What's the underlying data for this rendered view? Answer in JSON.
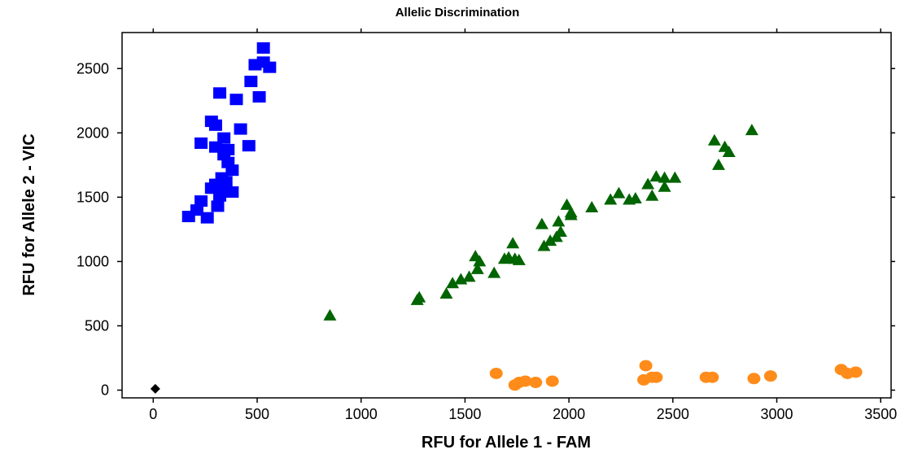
{
  "chart_data": {
    "type": "scatter",
    "title": "Allelic Discrimination",
    "xlabel": "RFU for Allele 1 - FAM",
    "ylabel": "RFU for Allele 2 - VIC",
    "xlim": [
      -150,
      3550
    ],
    "ylim": [
      -60,
      2780
    ],
    "xticks": [
      0,
      500,
      1000,
      1500,
      2000,
      2500,
      3000,
      3500
    ],
    "yticks": [
      0,
      500,
      1000,
      1500,
      2000,
      2500
    ],
    "grid": false,
    "series": [
      {
        "marker": "square",
        "color": "#0000ff",
        "points": [
          [
            530,
            2660
          ],
          [
            490,
            2530
          ],
          [
            530,
            2550
          ],
          [
            560,
            2510
          ],
          [
            470,
            2400
          ],
          [
            510,
            2280
          ],
          [
            320,
            2310
          ],
          [
            400,
            2260
          ],
          [
            280,
            2090
          ],
          [
            300,
            2060
          ],
          [
            420,
            2030
          ],
          [
            340,
            1960
          ],
          [
            230,
            1920
          ],
          [
            460,
            1900
          ],
          [
            300,
            1890
          ],
          [
            360,
            1870
          ],
          [
            340,
            1830
          ],
          [
            360,
            1770
          ],
          [
            380,
            1710
          ],
          [
            330,
            1650
          ],
          [
            300,
            1600
          ],
          [
            350,
            1620
          ],
          [
            280,
            1570
          ],
          [
            340,
            1560
          ],
          [
            380,
            1540
          ],
          [
            320,
            1510
          ],
          [
            230,
            1470
          ],
          [
            310,
            1430
          ],
          [
            210,
            1400
          ],
          [
            170,
            1350
          ],
          [
            260,
            1340
          ]
        ]
      },
      {
        "marker": "triangle",
        "color": "#006400",
        "points": [
          [
            2880,
            2020
          ],
          [
            2700,
            1940
          ],
          [
            2750,
            1890
          ],
          [
            2770,
            1850
          ],
          [
            2720,
            1750
          ],
          [
            2420,
            1660
          ],
          [
            2460,
            1650
          ],
          [
            2510,
            1650
          ],
          [
            2460,
            1580
          ],
          [
            2380,
            1600
          ],
          [
            2240,
            1530
          ],
          [
            2200,
            1480
          ],
          [
            2320,
            1490
          ],
          [
            2290,
            1480
          ],
          [
            2400,
            1510
          ],
          [
            1990,
            1440
          ],
          [
            2010,
            1380
          ],
          [
            2010,
            1360
          ],
          [
            2110,
            1420
          ],
          [
            1950,
            1310
          ],
          [
            1870,
            1290
          ],
          [
            1960,
            1230
          ],
          [
            1940,
            1190
          ],
          [
            1910,
            1160
          ],
          [
            1880,
            1120
          ],
          [
            1730,
            1140
          ],
          [
            1550,
            1040
          ],
          [
            1570,
            1000
          ],
          [
            1710,
            1030
          ],
          [
            1740,
            1020
          ],
          [
            1760,
            1010
          ],
          [
            1690,
            1020
          ],
          [
            1560,
            940
          ],
          [
            1640,
            910
          ],
          [
            1520,
            880
          ],
          [
            1480,
            860
          ],
          [
            1440,
            830
          ],
          [
            1410,
            750
          ],
          [
            1280,
            720
          ],
          [
            1270,
            700
          ],
          [
            850,
            580
          ]
        ]
      },
      {
        "marker": "circle",
        "color": "#ff8c1a",
        "points": [
          [
            1650,
            130
          ],
          [
            1790,
            70
          ],
          [
            1760,
            60
          ],
          [
            1740,
            40
          ],
          [
            1840,
            60
          ],
          [
            1920,
            70
          ],
          [
            2370,
            190
          ],
          [
            2360,
            80
          ],
          [
            2400,
            100
          ],
          [
            2420,
            100
          ],
          [
            2660,
            100
          ],
          [
            2690,
            100
          ],
          [
            2890,
            90
          ],
          [
            2970,
            110
          ],
          [
            3310,
            160
          ],
          [
            3340,
            130
          ],
          [
            3380,
            140
          ]
        ]
      },
      {
        "marker": "diamond",
        "color": "#000000",
        "points": [
          [
            10,
            10
          ]
        ]
      }
    ]
  }
}
